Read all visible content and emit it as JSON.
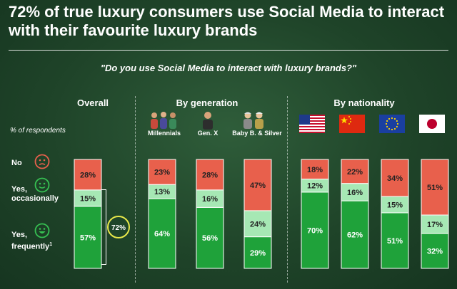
{
  "title": "72% of true luxury consumers use Social Media to interact with their favourite luxury brands",
  "question": "\"Do you use Social Media to interact with luxury brands?\"",
  "sections": {
    "overall": "Overall",
    "generation": "By generation",
    "nationality": "By nationality"
  },
  "respondents_label": "% of respondents",
  "row_labels": {
    "no": "No",
    "occasionally_1": "Yes,",
    "occasionally_2": "occasionally",
    "frequently_1": "Yes,",
    "frequently_2": "frequently",
    "frequently_sup": "1"
  },
  "total_badge": "72%",
  "colors": {
    "no": "#e8604c",
    "occasionally": "#a6e8b4",
    "frequently": "#1fa23a",
    "text_dark": "#222222"
  },
  "chart_data": {
    "type": "bar",
    "stacked": true,
    "title": "Do you use Social Media to interact with luxury brands?",
    "ylabel": "% of respondents",
    "ylim": [
      0,
      100
    ],
    "categories": [
      "Overall",
      "Millennials",
      "Gen. X",
      "Baby B. & Silver",
      "US",
      "China",
      "EU",
      "Japan"
    ],
    "series": [
      {
        "name": "Yes, frequently",
        "values": [
          57,
          64,
          56,
          29,
          70,
          62,
          51,
          32
        ]
      },
      {
        "name": "Yes, occasionally",
        "values": [
          15,
          13,
          16,
          24,
          12,
          16,
          15,
          17
        ]
      },
      {
        "name": "No",
        "values": [
          28,
          23,
          28,
          47,
          18,
          22,
          34,
          51
        ]
      }
    ]
  }
}
